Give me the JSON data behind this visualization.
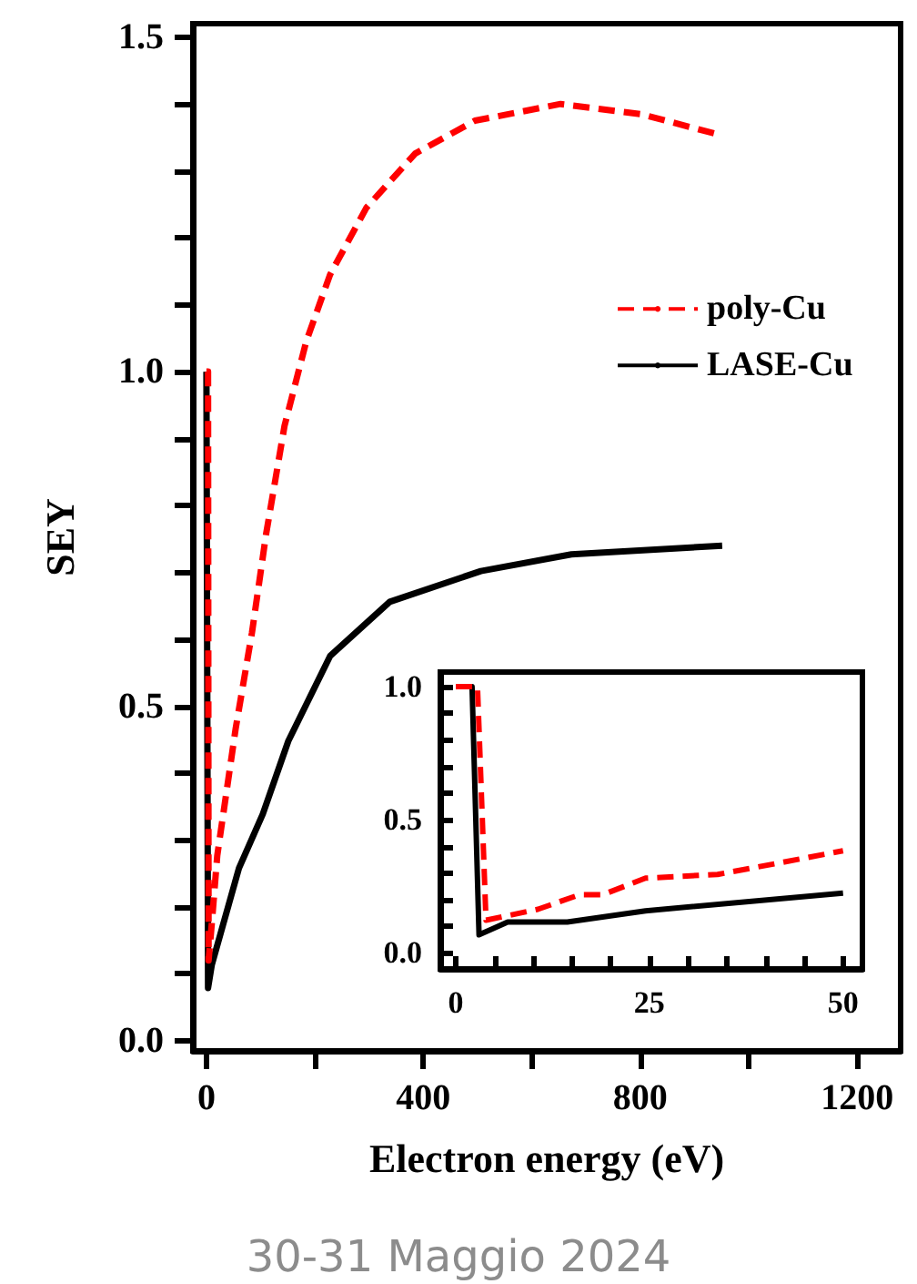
{
  "chart_data": [
    {
      "type": "line",
      "xlabel": "Electron energy (eV)",
      "ylabel": "SEY",
      "legend": "top right",
      "line_style": "solid",
      "marker": "none",
      "xlim": [
        -25,
        1280
      ],
      "ylim": [
        -0.015,
        1.52
      ],
      "xticks": [
        0,
        {
          "value": 200,
          "label": null
        },
        400,
        {
          "value": 600,
          "label": null
        },
        800,
        {
          "value": 1000,
          "label": null
        },
        1200
      ],
      "yticks": [
        {
          "value": 0,
          "label": "0.0"
        },
        {
          "value": 0.1,
          "label": null
        },
        {
          "value": 0.2,
          "label": null
        },
        {
          "value": 0.3,
          "label": null
        },
        {
          "value": 0.4,
          "label": null
        },
        {
          "value": 0.5,
          "label": "0.5"
        },
        {
          "value": 0.6,
          "label": null
        },
        {
          "value": 0.7,
          "label": null
        },
        {
          "value": 0.8,
          "label": null
        },
        {
          "value": 0.9,
          "label": null
        },
        {
          "value": 1,
          "label": "1.0"
        },
        {
          "value": 1.1,
          "label": null
        },
        {
          "value": 1.2,
          "label": null
        },
        {
          "value": 1.3,
          "label": null
        },
        {
          "value": 1.4,
          "label": null
        },
        {
          "value": 1.5,
          "label": "1.5"
        }
      ],
      "series": [
        {
          "name": "poly-Cu",
          "color": "#ff0000",
          "line_style": "dashed",
          "x": [
            0,
            3,
            4,
            10,
            20,
            54,
            84,
            110,
            144,
            184,
            228,
            295,
            385,
            495,
            653,
            800,
            951
          ],
          "values": [
            1.0,
            1.0,
            0.12,
            0.176,
            0.277,
            0.467,
            0.61,
            0.757,
            0.919,
            1.045,
            1.145,
            1.245,
            1.326,
            1.375,
            1.4,
            1.385,
            1.353
          ]
        },
        {
          "name": "LASE-Cu",
          "color": "#000000",
          "x": [
            0,
            2,
            3,
            10,
            60,
            104,
            151,
            228,
            338,
            506,
            673,
            951
          ],
          "values": [
            1.0,
            1.0,
            0.079,
            0.114,
            0.258,
            0.339,
            0.448,
            0.575,
            0.656,
            0.702,
            0.727,
            0.74
          ]
        }
      ],
      "annotations": [
        "30-31 Maggio 2024"
      ]
    },
    {
      "type": "line",
      "legend": false,
      "line_style": "solid",
      "marker": "none",
      "xlim": [
        -2,
        52.5
      ],
      "ylim": [
        -0.06,
        1.055
      ],
      "xticks": [
        0,
        {
          "value": 5,
          "label": null
        },
        {
          "value": 10,
          "label": null
        },
        {
          "value": 15,
          "label": null
        },
        {
          "value": 20,
          "label": null
        },
        25,
        {
          "value": 30,
          "label": null
        },
        {
          "value": 35,
          "label": null
        },
        {
          "value": 40,
          "label": null
        },
        {
          "value": 45,
          "label": null
        },
        50
      ],
      "yticks": [
        {
          "value": 0,
          "label": "0.0"
        },
        {
          "value": 0.1,
          "label": null
        },
        {
          "value": 0.2,
          "label": null
        },
        {
          "value": 0.3,
          "label": null
        },
        {
          "value": 0.4,
          "label": null
        },
        {
          "value": 0.5,
          "label": "0.5"
        },
        {
          "value": 0.6,
          "label": null
        },
        {
          "value": 0.7,
          "label": null
        },
        {
          "value": 0.8,
          "label": null
        },
        {
          "value": 0.9,
          "label": null
        },
        {
          "value": 1,
          "label": "1.0"
        }
      ],
      "series": [
        {
          "color": "#ff0000",
          "line_style": "dashed",
          "x": [
            0,
            2.8,
            3.9,
            10.6,
            16,
            19,
            24.5,
            33.8,
            41.4,
            50
          ],
          "values": [
            1.0,
            1.0,
            0.123,
            0.164,
            0.219,
            0.219,
            0.281,
            0.295,
            0.336,
            0.384
          ]
        },
        {
          "color": "#000000",
          "x": [
            0,
            2.1,
            3,
            6.7,
            14.4,
            24.5,
            50
          ],
          "values": [
            1.0,
            1.0,
            0.068,
            0.116,
            0.116,
            0.158,
            0.225
          ]
        }
      ]
    }
  ]
}
